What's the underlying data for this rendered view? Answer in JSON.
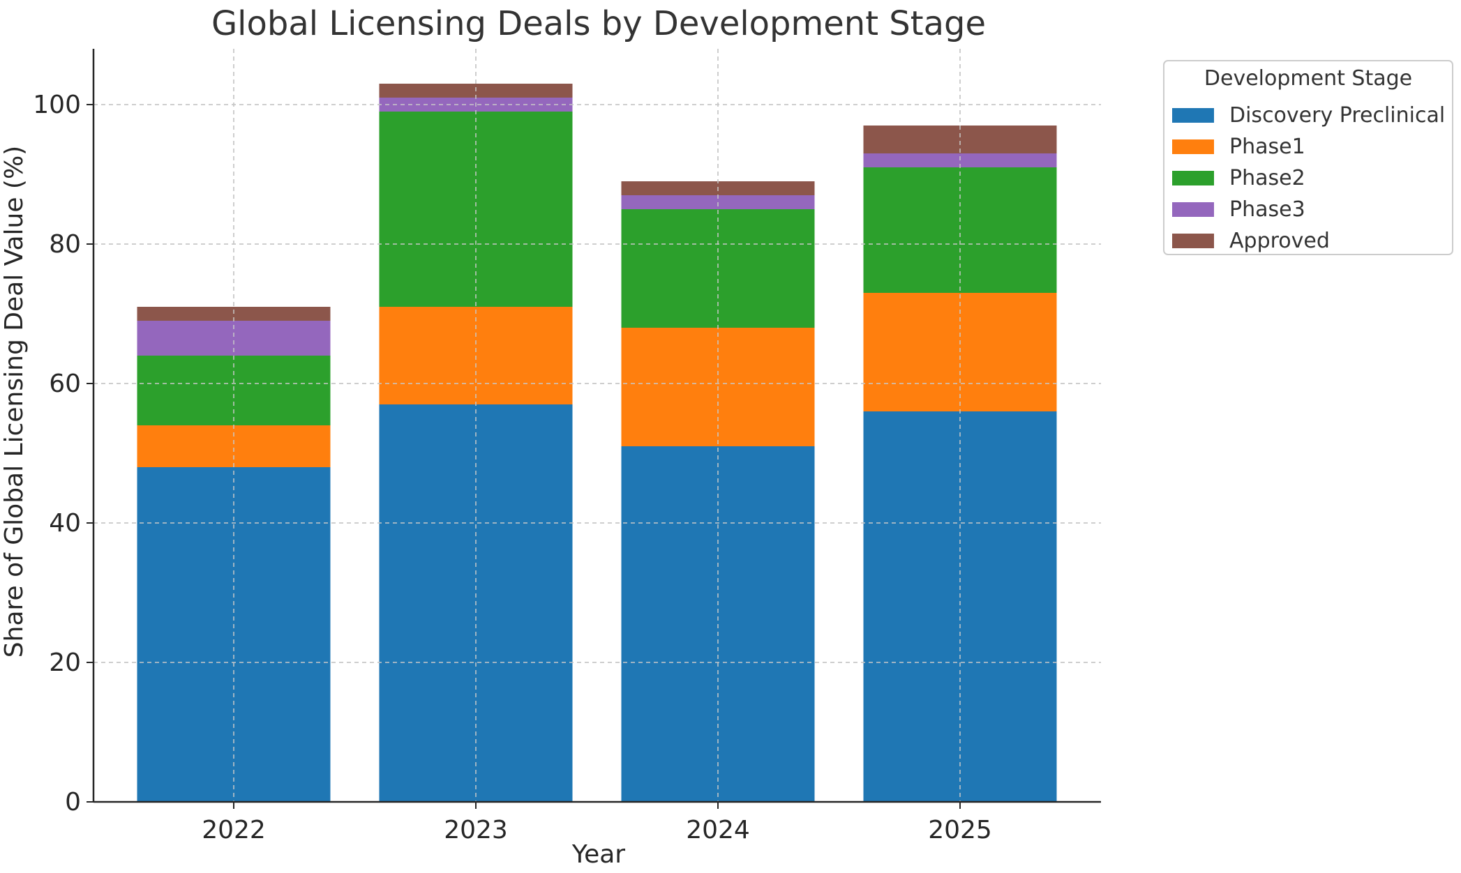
{
  "chart_data": {
    "type": "bar",
    "stacked": true,
    "title": "Global Licensing Deals by Development Stage",
    "xlabel": "Year",
    "ylabel": "Share of Global Licensing Deal Value (%)",
    "categories": [
      "2022",
      "2023",
      "2024",
      "2025"
    ],
    "ylim": [
      0,
      108
    ],
    "yticks": [
      0,
      20,
      40,
      60,
      80,
      100
    ],
    "grid": true,
    "legend": {
      "title": "Development Stage",
      "position": "top-right-outside"
    },
    "series": [
      {
        "name": "Discovery Preclinical",
        "color": "#1f77b4",
        "values": [
          48,
          57,
          51,
          56
        ]
      },
      {
        "name": "Phase1",
        "color": "#ff7f0e",
        "values": [
          6,
          14,
          17,
          17
        ]
      },
      {
        "name": "Phase2",
        "color": "#2ca02c",
        "values": [
          10,
          28,
          17,
          18
        ]
      },
      {
        "name": "Phase3",
        "color": "#9467bd",
        "values": [
          5,
          2,
          2,
          2
        ]
      },
      {
        "name": "Approved",
        "color": "#8c564b",
        "values": [
          2,
          2,
          2,
          4
        ]
      }
    ]
  }
}
